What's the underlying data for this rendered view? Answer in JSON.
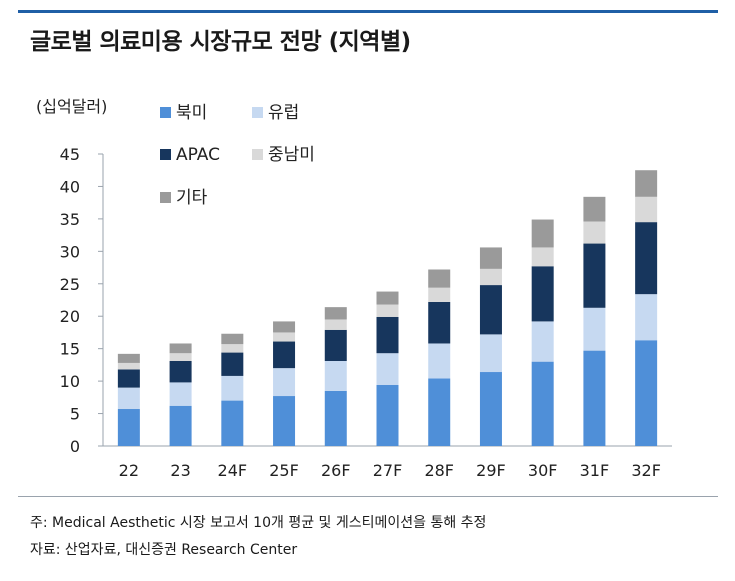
{
  "header": {
    "title": "글로벌 의료미용 시장규모 전망 (지역별)"
  },
  "footer": {
    "note": "주: Medical Aesthetic 시장 보고서 10개 평균 및 게스티메이션을 통해 추정",
    "source": "자료: 산업자료, 대신증권 Research Center"
  },
  "chart_data": {
    "type": "bar",
    "stacked": true,
    "title": "",
    "xlabel": "",
    "ylabel": "",
    "unit_label": "(십억달러)",
    "ylim": [
      0,
      45
    ],
    "yticks": [
      0,
      5,
      10,
      15,
      20,
      25,
      30,
      35,
      40,
      45
    ],
    "grid": false,
    "legend_position": "top-left",
    "categories": [
      "22",
      "23",
      "24F",
      "25F",
      "26F",
      "27F",
      "28F",
      "29F",
      "30F",
      "31F",
      "32F"
    ],
    "series": [
      {
        "name": "북미",
        "color": "#4f8fd8",
        "values": [
          5.7,
          6.2,
          7.0,
          7.7,
          8.5,
          9.4,
          10.4,
          11.4,
          13.0,
          14.7,
          16.3
        ]
      },
      {
        "name": "유럽",
        "color": "#c6d9f1",
        "values": [
          3.3,
          3.6,
          3.8,
          4.3,
          4.6,
          4.9,
          5.4,
          5.8,
          6.2,
          6.6,
          7.1
        ]
      },
      {
        "name": "APAC",
        "color": "#17365d",
        "values": [
          2.8,
          3.3,
          3.6,
          4.1,
          4.8,
          5.6,
          6.4,
          7.6,
          8.5,
          9.9,
          11.1
        ]
      },
      {
        "name": "중남미",
        "color": "#d9d9d9",
        "values": [
          1.0,
          1.2,
          1.3,
          1.4,
          1.6,
          1.9,
          2.2,
          2.5,
          2.9,
          3.4,
          3.9
        ]
      },
      {
        "name": "기타",
        "color": "#9a9a9a",
        "values": [
          1.4,
          1.5,
          1.6,
          1.7,
          1.9,
          2.0,
          2.8,
          3.3,
          4.3,
          3.8,
          4.1
        ]
      }
    ]
  }
}
